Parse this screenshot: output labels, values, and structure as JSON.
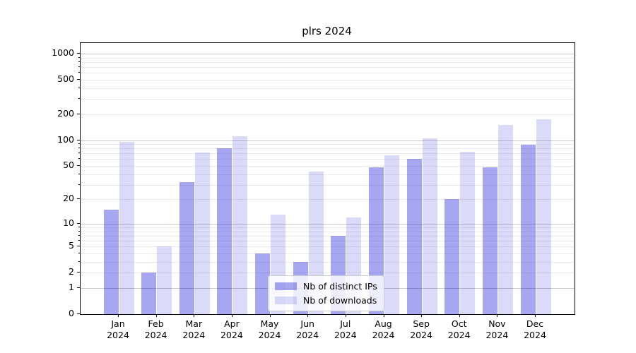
{
  "title": "plrs 2024",
  "colors": {
    "ips_bar": "rgba(0,0,215,0.35)",
    "downloads_bar": "rgba(0,0,215,0.14)",
    "major_gridline": "#c8c8c8",
    "minor_gridline": "#ebebeb",
    "axis": "#000000",
    "background": "#ffffff"
  },
  "legend": {
    "items": [
      {
        "label": "Nb of distinct IPs",
        "series": "ips"
      },
      {
        "label": "Nb of downloads",
        "series": "downloads"
      }
    ]
  },
  "y_axis": {
    "labeled_ticks": [
      0,
      1,
      2,
      5,
      10,
      20,
      50,
      100,
      200,
      500,
      1000
    ],
    "major_gridline_values": [
      1,
      10,
      100,
      1000
    ],
    "minor_gridline_values": [
      2,
      3,
      4,
      5,
      6,
      7,
      8,
      9,
      20,
      30,
      40,
      50,
      60,
      70,
      80,
      90,
      200,
      300,
      400,
      500,
      600,
      700,
      800,
      900
    ]
  },
  "chart_data": {
    "type": "bar",
    "title": "plrs 2024",
    "categories": [
      "Jan",
      "Feb",
      "Mar",
      "Apr",
      "May",
      "Jun",
      "Jul",
      "Aug",
      "Sep",
      "Oct",
      "Nov",
      "Dec"
    ],
    "category_year": "2024",
    "series": [
      {
        "name": "Nb of distinct IPs",
        "values": [
          15,
          2,
          32,
          81,
          4,
          3,
          7,
          48,
          60,
          20,
          48,
          88
        ]
      },
      {
        "name": "Nb of downloads",
        "values": [
          95,
          5,
          72,
          110,
          13,
          43,
          12,
          66,
          104,
          73,
          150,
          173
        ]
      }
    ],
    "xlabel": "",
    "ylabel": "",
    "yscale": "log1p",
    "ylim": [
      0,
      1325
    ],
    "yticks": [
      0,
      1,
      2,
      5,
      10,
      20,
      50,
      100,
      200,
      500,
      1000
    ],
    "grid": "horizontal major and minor gridlines",
    "legend_position": "inside lower-center"
  }
}
